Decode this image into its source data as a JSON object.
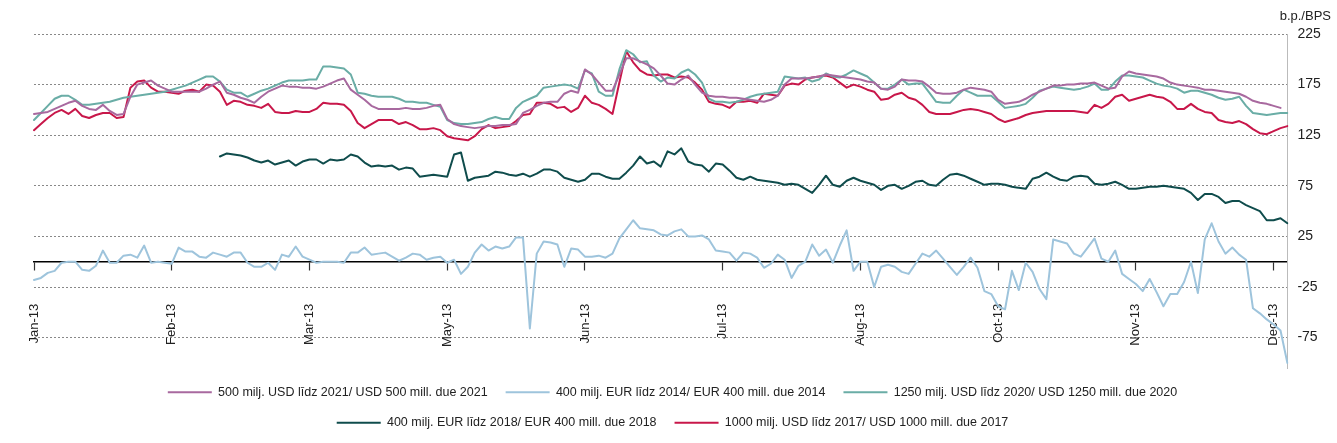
{
  "chart_data": {
    "type": "line",
    "ylabel": "b.p./BPS",
    "ylim": [
      -105,
      225
    ],
    "categories": [
      "Jan-13",
      null,
      null,
      null,
      null,
      null,
      null,
      null,
      null,
      null,
      null,
      null,
      null,
      null,
      null,
      null,
      null,
      null,
      null,
      null,
      "Feb-13",
      null,
      null,
      null,
      null,
      null,
      null,
      null,
      null,
      null,
      null,
      null,
      null,
      null,
      null,
      null,
      null,
      null,
      null,
      null,
      "Mar-13",
      null,
      null,
      null,
      null,
      null,
      null,
      null,
      null,
      null,
      null,
      null,
      null,
      null,
      null,
      null,
      null,
      null,
      null,
      null,
      "May-13",
      null,
      null,
      null,
      null,
      null,
      null,
      null,
      null,
      null,
      null,
      null,
      null,
      null,
      null,
      null,
      null,
      null,
      null,
      null,
      "Jun-13",
      null,
      null,
      null,
      null,
      null,
      null,
      null,
      null,
      null,
      null,
      null,
      null,
      null,
      null,
      null,
      null,
      null,
      null,
      null,
      "Jul-13",
      null,
      null,
      null,
      null,
      null,
      null,
      null,
      null,
      null,
      null,
      null,
      null,
      null,
      null,
      null,
      null,
      null,
      null,
      null,
      "Aug-13",
      null,
      null,
      null,
      null,
      null,
      null,
      null,
      null,
      null,
      null,
      null,
      null,
      null,
      null,
      null,
      null,
      null,
      null,
      null,
      "Oct-13",
      null,
      null,
      null,
      null,
      null,
      null,
      null,
      null,
      null,
      null,
      null,
      null,
      null,
      null,
      null,
      null,
      null,
      null,
      null,
      "Nov-13",
      null,
      null,
      null,
      null,
      null,
      null,
      null,
      null,
      null,
      null,
      null,
      null,
      null,
      null,
      null,
      null,
      null,
      null,
      null,
      "Dec-13",
      null,
      null
    ],
    "yticks": [
      -75,
      -25,
      25,
      75,
      125,
      175,
      225
    ],
    "grid": "y",
    "legend": "bottom",
    "marker": "none",
    "line_style": "solid",
    "series": [
      {
        "name": "500 milj. USD līdz 2021/ USD 500 mill. due 2021",
        "color": "#a8699f",
        "values": [
          146,
          147,
          148,
          151,
          154,
          157,
          159,
          154,
          151,
          150,
          155,
          149,
          145,
          146,
          163,
          175,
          177,
          179,
          174,
          171,
          168,
          168,
          168,
          168,
          168,
          171,
          175,
          178,
          167,
          165,
          162,
          160,
          157,
          163,
          168,
          171,
          174,
          173,
          173,
          172,
          172,
          171,
          173,
          176,
          179,
          181,
          170,
          165,
          160,
          154,
          151,
          151,
          151,
          151,
          152,
          151,
          151,
          152,
          154,
          155,
          141,
          136,
          134,
          133,
          132,
          133,
          134,
          134,
          135,
          135,
          136,
          147,
          150,
          154,
          157,
          158,
          158,
          166,
          169,
          167,
          190,
          185,
          177,
          169,
          169,
          185,
          201,
          201,
          198,
          195,
          191,
          184,
          176,
          175,
          180,
          184,
          175,
          167,
          164,
          163,
          163,
          162,
          162,
          161,
          160,
          159,
          158,
          160,
          164,
          175,
          181,
          181,
          181,
          182,
          183,
          185,
          184,
          183,
          182,
          181,
          180,
          178,
          177,
          171,
          170,
          173,
          180,
          179,
          179,
          178,
          173,
          167,
          166,
          166,
          167,
          170,
          172,
          171,
          170,
          168,
          160,
          156,
          157,
          158,
          161,
          165,
          168,
          171,
          174,
          174,
          175,
          175,
          176,
          176,
          177,
          174,
          171,
          172,
          183,
          188,
          186,
          185,
          184,
          183,
          181,
          177,
          175,
          174,
          173,
          172,
          170,
          170,
          169,
          168,
          167,
          166,
          163,
          159,
          157,
          156,
          154,
          152,
          null
        ]
      },
      {
        "name": "400 milj. EUR līdz 2014/ EUR 400 mill. due 2014",
        "color": "#9ec4dc",
        "values": [
          -18,
          -16,
          -11,
          -9,
          -1,
          0,
          0,
          -8,
          -9,
          -4,
          11,
          -1,
          -1,
          6,
          7,
          4,
          16,
          -1,
          0,
          -1,
          -2,
          14,
          10,
          10,
          5,
          4,
          9,
          7,
          5,
          9,
          9,
          -1,
          -5,
          -5,
          -1,
          -8,
          7,
          5,
          15,
          5,
          2,
          -1,
          0,
          0,
          0,
          -1,
          9,
          9,
          14,
          7,
          8,
          9,
          5,
          1,
          4,
          8,
          7,
          2,
          4,
          5,
          -1,
          2,
          -12,
          -5,
          9,
          17,
          11,
          15,
          13,
          15,
          24,
          24,
          -66,
          8,
          20,
          19,
          17,
          -5,
          13,
          12,
          5,
          5,
          6,
          4,
          8,
          23,
          32,
          41,
          33,
          32,
          31,
          27,
          26,
          30,
          32,
          25,
          25,
          26,
          22,
          11,
          10,
          9,
          1,
          9,
          8,
          4,
          -6,
          -2,
          7,
          2,
          -16,
          -4,
          0,
          17,
          6,
          12,
          -1,
          16,
          31,
          -9,
          0,
          0,
          -25,
          -5,
          -3,
          -5,
          -10,
          -12,
          -2,
          8,
          5,
          11,
          3,
          -5,
          -13,
          -5,
          4,
          -6,
          -29,
          -32,
          -44,
          -47,
          -9,
          -28,
          -1,
          -10,
          -27,
          -37,
          22,
          20,
          18,
          8,
          5,
          14,
          23,
          3,
          0,
          11,
          -12,
          -17,
          -22,
          -29,
          -17,
          -30,
          -44,
          -32,
          -32,
          -20,
          0,
          -31,
          22,
          38,
          20,
          8,
          14,
          7,
          2,
          -46,
          -51,
          -57,
          -62,
          -68,
          -100
        ]
      },
      {
        "name": "1250 milj. USD līdz 2020/ USD 1250 mill. due 2020",
        "color": "#6aada6",
        "values": [
          140,
          147,
          154,
          161,
          164,
          164,
          160,
          155,
          155,
          156,
          157,
          158,
          160,
          162,
          163,
          164,
          165,
          166,
          167,
          168,
          170,
          172,
          174,
          177,
          180,
          183,
          183,
          178,
          170,
          167,
          167,
          163,
          166,
          169,
          171,
          174,
          177,
          179,
          179,
          179,
          180,
          180,
          193,
          193,
          192,
          191,
          185,
          167,
          166,
          164,
          163,
          163,
          163,
          161,
          158,
          158,
          157,
          157,
          155,
          153,
          140,
          137,
          136,
          136,
          137,
          138,
          141,
          143,
          141,
          141,
          152,
          158,
          161,
          164,
          172,
          173,
          174,
          175,
          174,
          171,
          189,
          186,
          168,
          164,
          164,
          190,
          209,
          205,
          197,
          198,
          184,
          178,
          182,
          181,
          187,
          190,
          185,
          177,
          161,
          158,
          158,
          157,
          158,
          160,
          163,
          165,
          166,
          167,
          168,
          183,
          182,
          181,
          182,
          178,
          180,
          186,
          183,
          182,
          185,
          189,
          186,
          183,
          177,
          171,
          171,
          175,
          180,
          175,
          176,
          176,
          167,
          158,
          157,
          157,
          164,
          170,
          167,
          164,
          164,
          164,
          158,
          152,
          153,
          154,
          156,
          162,
          169,
          171,
          173,
          172,
          171,
          170,
          171,
          173,
          176,
          170,
          170,
          178,
          184,
          184,
          183,
          182,
          179,
          176,
          174,
          173,
          171,
          167,
          169,
          169,
          167,
          165,
          162,
          160,
          161,
          163,
          154,
          147,
          146,
          145,
          146,
          147,
          147
        ]
      },
      {
        "name": "400 milj. EUR līdz 2018/ EUR 400 mill. due 2018",
        "color": "#0f4c4c",
        "values": [
          null,
          null,
          null,
          null,
          null,
          null,
          null,
          null,
          null,
          null,
          null,
          null,
          null,
          null,
          null,
          null,
          null,
          null,
          null,
          null,
          null,
          null,
          null,
          null,
          null,
          null,
          null,
          104,
          107,
          106,
          105,
          103,
          100,
          98,
          100,
          96,
          98,
          100,
          95,
          99,
          101,
          101,
          97,
          101,
          100,
          101,
          106,
          104,
          98,
          94,
          95,
          94,
          95,
          91,
          93,
          92,
          84,
          85,
          86,
          85,
          84,
          106,
          108,
          80,
          83,
          84,
          85,
          89,
          88,
          86,
          85,
          87,
          84,
          87,
          91,
          91,
          89,
          83,
          81,
          79,
          81,
          87,
          87,
          84,
          82,
          82,
          88,
          95,
          104,
          97,
          99,
          94,
          109,
          106,
          112,
          99,
          96,
          95,
          89,
          97,
          96,
          90,
          83,
          81,
          84,
          81,
          80,
          79,
          78,
          76,
          77,
          76,
          72,
          68,
          76,
          85,
          76,
          74,
          80,
          83,
          80,
          78,
          76,
          71,
          75,
          76,
          72,
          75,
          79,
          80,
          76,
          75,
          81,
          86,
          87,
          85,
          82,
          79,
          76,
          77,
          77,
          76,
          74,
          73,
          72,
          82,
          84,
          88,
          84,
          81,
          80,
          84,
          85,
          84,
          77,
          76,
          77,
          79,
          76,
          72,
          72,
          73,
          74,
          74,
          75,
          74,
          73,
          72,
          68,
          61,
          67,
          67,
          64,
          58,
          60,
          60,
          56,
          53,
          50,
          41,
          41,
          43,
          38
        ]
      },
      {
        "name": "1000 milj. USD līdz 2017/ USD 1000 mill. due 2017",
        "color": "#c8174a",
        "values": [
          130,
          136,
          142,
          147,
          150,
          146,
          151,
          144,
          142,
          145,
          147,
          147,
          142,
          143,
          172,
          178,
          179,
          172,
          168,
          168,
          167,
          166,
          169,
          170,
          168,
          175,
          174,
          168,
          155,
          159,
          158,
          155,
          154,
          152,
          156,
          148,
          147,
          147,
          149,
          148,
          148,
          151,
          157,
          156,
          156,
          155,
          149,
          137,
          132,
          136,
          140,
          140,
          140,
          136,
          138,
          135,
          131,
          131,
          132,
          130,
          124,
          122,
          121,
          120,
          124,
          131,
          135,
          132,
          133,
          134,
          139,
          145,
          146,
          157,
          157,
          156,
          152,
          153,
          148,
          152,
          164,
          157,
          155,
          151,
          146,
          177,
          208,
          197,
          189,
          185,
          184,
          185,
          185,
          182,
          183,
          182,
          177,
          170,
          158,
          156,
          155,
          152,
          158,
          158,
          159,
          157,
          166,
          165,
          164,
          174,
          176,
          175,
          180,
          182,
          183,
          184,
          182,
          177,
          172,
          175,
          173,
          170,
          168,
          160,
          161,
          165,
          167,
          162,
          160,
          155,
          148,
          146,
          146,
          146,
          148,
          150,
          151,
          150,
          148,
          146,
          141,
          138,
          140,
          142,
          145,
          147,
          148,
          149,
          149,
          149,
          149,
          149,
          148,
          147,
          155,
          152,
          156,
          163,
          165,
          159,
          161,
          163,
          165,
          163,
          162,
          158,
          151,
          151,
          156,
          151,
          148,
          147,
          140,
          138,
          137,
          139,
          136,
          131,
          127,
          126,
          129,
          132,
          134
        ]
      }
    ]
  }
}
